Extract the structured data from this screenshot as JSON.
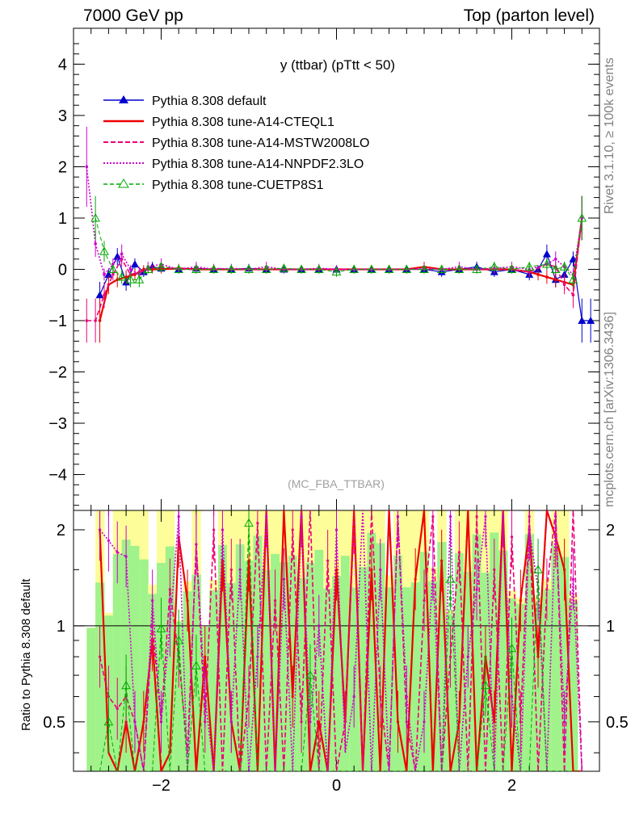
{
  "header": {
    "left": "7000 GeV pp",
    "right": "Top (parton level)"
  },
  "side": {
    "top_label": "Rivet 3.1.10, ≥ 100k events",
    "bottom_label": "mcplots.cern.ch [arXiv:1306.3436]"
  },
  "chart_data": [
    {
      "type": "line",
      "title": "y (ttbar) (pTtt < 50)",
      "watermark": "(MC_FBA_TTBAR)",
      "xlim": [
        -3.0,
        3.0
      ],
      "ylim": [
        -4.7,
        4.7
      ],
      "xticks": [
        -2,
        0,
        2
      ],
      "yticks": [
        -4,
        -3,
        -2,
        -1,
        0,
        1,
        2,
        3,
        4
      ],
      "legend_position": "top-left",
      "series": [
        {
          "name": "Pythia 8.308 default",
          "color": "#0000cc",
          "x": [
            -2.7,
            -2.6,
            -2.5,
            -2.4,
            -2.3,
            -2.2,
            -2.1,
            -2.0,
            -1.8,
            -1.6,
            -1.4,
            -1.2,
            -1.0,
            -0.8,
            -0.6,
            -0.4,
            -0.2,
            0.0,
            0.2,
            0.4,
            0.6,
            0.8,
            1.0,
            1.2,
            1.4,
            1.6,
            1.8,
            2.0,
            2.2,
            2.3,
            2.4,
            2.5,
            2.6,
            2.7,
            2.8,
            2.9
          ],
          "y": [
            -0.5,
            -0.1,
            0.25,
            -0.25,
            0.1,
            -0.05,
            0.05,
            0.02,
            0.0,
            0.02,
            0.0,
            0.0,
            0.02,
            0.0,
            0.0,
            0.0,
            0.0,
            0.0,
            0.0,
            0.0,
            0.0,
            0.0,
            0.0,
            -0.05,
            0.0,
            0.05,
            -0.05,
            0.0,
            -0.1,
            0.0,
            0.3,
            -0.2,
            -0.1,
            0.2,
            -1.0,
            -1.0
          ]
        },
        {
          "name": "Pythia 8.308 tune-A14-CTEQL1",
          "color": "#ee0000",
          "x": [
            -2.7,
            -2.6,
            -2.5,
            -2.4,
            -2.3,
            -2.2,
            -2.1,
            -2.0,
            -1.8,
            -1.6,
            -1.4,
            -1.2,
            -1.0,
            -0.8,
            -0.6,
            -0.4,
            -0.2,
            0.0,
            0.2,
            0.4,
            0.6,
            0.8,
            1.0,
            1.2,
            1.4,
            1.6,
            1.8,
            2.0,
            2.2,
            2.3,
            2.4,
            2.5,
            2.6,
            2.7,
            2.8
          ],
          "y": [
            -1.0,
            -0.3,
            -0.2,
            -0.15,
            -0.1,
            0.0,
            0.0,
            0.0,
            0.02,
            0.0,
            0.0,
            0.0,
            0.0,
            0.0,
            0.0,
            0.0,
            0.0,
            0.0,
            0.0,
            0.0,
            0.0,
            0.0,
            0.05,
            0.0,
            0.0,
            0.0,
            0.0,
            0.0,
            -0.05,
            -0.1,
            -0.15,
            -0.2,
            -0.25,
            -0.3,
            1.0
          ]
        },
        {
          "name": "Pythia 8.308 tune-A14-MSTW2008LO",
          "color": "#ee0077",
          "x": [
            -2.85,
            -2.75,
            -2.65,
            -2.55,
            -2.45,
            -2.35,
            -2.25,
            -2.15,
            -2.0,
            -1.8,
            -1.6,
            -1.4,
            -1.2,
            -1.0,
            -0.8,
            -0.6,
            -0.4,
            -0.2,
            0.0,
            0.2,
            0.4,
            0.6,
            0.8,
            1.0,
            1.2,
            1.4,
            1.6,
            1.8,
            2.0,
            2.2,
            2.4,
            2.5,
            2.6,
            2.7,
            2.8
          ],
          "y": [
            -1.0,
            -1.0,
            -0.5,
            -0.1,
            0.2,
            -0.1,
            -0.05,
            0.0,
            0.05,
            0.0,
            0.0,
            0.02,
            0.0,
            0.0,
            0.0,
            0.0,
            0.0,
            0.0,
            0.0,
            0.0,
            0.0,
            0.0,
            0.0,
            0.0,
            0.0,
            0.0,
            0.0,
            0.0,
            0.0,
            -0.05,
            0.1,
            0.05,
            -0.3,
            -0.5,
            1.0
          ]
        },
        {
          "name": "Pythia 8.308 tune-A14-NNPDF2.3LO",
          "color": "#cc00cc",
          "x": [
            -2.85,
            -2.75,
            -2.65,
            -2.55,
            -2.45,
            -2.35,
            -2.25,
            -2.15,
            -2.0,
            -1.8,
            -1.6,
            -1.4,
            -1.2,
            -1.0,
            -0.8,
            -0.6,
            -0.4,
            -0.2,
            0.0,
            0.2,
            0.4,
            0.6,
            0.8,
            1.0,
            1.2,
            1.4,
            1.6,
            1.8,
            2.0,
            2.2,
            2.4,
            2.5,
            2.6,
            2.7,
            2.8
          ],
          "y": [
            2.0,
            0.5,
            -0.1,
            0.1,
            0.3,
            0.0,
            -0.1,
            0.05,
            0.1,
            0.0,
            0.05,
            0.0,
            0.02,
            0.0,
            0.05,
            0.0,
            0.0,
            0.02,
            0.0,
            0.0,
            0.0,
            0.0,
            0.0,
            0.02,
            0.0,
            0.05,
            0.0,
            0.02,
            0.05,
            0.0,
            0.1,
            0.2,
            0.05,
            -0.1,
            1.0
          ]
        },
        {
          "name": "Pythia 8.308 tune-CUETP8S1",
          "color": "#00aa00",
          "x": [
            -2.75,
            -2.65,
            -2.55,
            -2.45,
            -2.35,
            -2.25,
            -2.15,
            -2.0,
            -1.8,
            -1.6,
            -1.4,
            -1.2,
            -1.0,
            -0.8,
            -0.6,
            -0.4,
            -0.2,
            0.0,
            0.2,
            0.4,
            0.6,
            0.8,
            1.0,
            1.2,
            1.4,
            1.6,
            1.8,
            2.0,
            2.2,
            2.4,
            2.5,
            2.6,
            2.7,
            2.8
          ],
          "y": [
            1.0,
            0.35,
            0.0,
            -0.15,
            -0.2,
            -0.2,
            0.0,
            0.05,
            0.0,
            0.0,
            0.0,
            0.0,
            0.0,
            0.0,
            0.02,
            0.0,
            0.0,
            -0.05,
            0.0,
            0.0,
            0.0,
            0.0,
            0.0,
            0.0,
            0.0,
            0.0,
            0.05,
            0.0,
            0.05,
            0.1,
            0.0,
            0.05,
            -0.2,
            1.0
          ]
        }
      ]
    },
    {
      "type": "line",
      "ylabel": "Ratio to Pythia 8.308 default",
      "xlim": [
        -3.0,
        3.0
      ],
      "ylim": [
        0.35,
        2.3
      ],
      "xticks": [
        -2,
        0,
        2
      ],
      "yticks": [
        0.5,
        1,
        2
      ],
      "ytick_labels": [
        "0.5",
        "1",
        "2"
      ],
      "reference_line": 1,
      "band_colors": {
        "inner": "#a0f28a",
        "outer": "#fdfd9a"
      },
      "series": [
        {
          "name": "Pythia 8.308 tune-A14-CTEQL1",
          "color": "#ee0000",
          "x": [
            -2.7,
            -2.6,
            -2.5,
            -2.4,
            -2.3,
            -2.2,
            -2.1,
            -2.0,
            -1.9,
            -1.8,
            -1.7,
            -1.6,
            -1.5,
            -1.4,
            -1.3,
            -1.2,
            -1.1,
            -1.0,
            -0.9,
            -0.8,
            -0.7,
            -0.6,
            -0.5,
            -0.4,
            -0.3,
            -0.2,
            -0.1,
            0.0,
            0.1,
            0.2,
            0.3,
            0.4,
            0.5,
            0.6,
            0.7,
            0.8,
            0.9,
            1.0,
            1.1,
            1.2,
            1.3,
            1.4,
            1.5,
            1.6,
            1.7,
            1.8,
            1.9,
            2.0,
            2.1,
            2.2,
            2.3,
            2.4,
            2.5,
            2.6,
            2.7,
            2.8
          ],
          "y": [
            2.0,
            0.4,
            0.35,
            0.5,
            0.35,
            0.5,
            0.9,
            0.35,
            0.4,
            1.9,
            1.2,
            0.35,
            0.8,
            0.35,
            1.6,
            0.5,
            0.35,
            1.6,
            0.35,
            2.3,
            0.35,
            2.3,
            0.6,
            2.3,
            0.35,
            0.5,
            0.35,
            1.5,
            0.5,
            2.3,
            0.35,
            1.5,
            0.35,
            2.3,
            0.5,
            0.35,
            1.4,
            2.3,
            0.35,
            1.6,
            0.35,
            0.5,
            2.3,
            0.35,
            0.8,
            0.5,
            2.3,
            0.35,
            1.2,
            2.0,
            0.8,
            2.3,
            1.9,
            1.5,
            0.35,
            0.35
          ]
        },
        {
          "name": "Pythia 8.308 tune-A14-MSTW2008LO",
          "color": "#ee0077",
          "x": [
            -2.7,
            -2.6,
            -2.5,
            -2.4,
            -2.3,
            -2.2,
            -2.1,
            -2.0,
            -1.9,
            -1.8,
            -1.7,
            -1.6,
            -1.5,
            -1.4,
            -1.3,
            -1.2,
            -1.1,
            -1.0,
            -0.9,
            -0.8,
            -0.7,
            -0.6,
            -0.5,
            -0.4,
            -0.3,
            -0.2,
            -0.1,
            0.0,
            0.1,
            0.2,
            0.3,
            0.4,
            0.5,
            0.6,
            0.7,
            0.8,
            0.9,
            1.0,
            1.1,
            1.2,
            1.3,
            1.4,
            1.5,
            1.6,
            1.7,
            1.8,
            1.9,
            2.0,
            2.1,
            2.2,
            2.3,
            2.4,
            2.5,
            2.6,
            2.7,
            2.8
          ],
          "y": [
            0.8,
            0.6,
            0.55,
            0.6,
            0.5,
            0.35,
            1.0,
            0.5,
            1.3,
            0.8,
            0.4,
            1.8,
            0.5,
            2.0,
            0.35,
            1.5,
            0.35,
            0.6,
            2.1,
            0.35,
            1.2,
            0.35,
            2.0,
            0.5,
            2.3,
            0.35,
            1.6,
            0.35,
            0.5,
            2.1,
            0.35,
            2.3,
            0.6,
            0.35,
            2.2,
            0.5,
            0.35,
            1.2,
            2.2,
            0.35,
            0.8,
            1.7,
            0.35,
            2.2,
            0.35,
            1.5,
            0.35,
            1.9,
            0.5,
            2.2,
            0.35,
            1.3,
            2.3,
            0.35,
            2.3,
            0.35
          ]
        },
        {
          "name": "Pythia 8.308 tune-A14-NNPDF2.3LO",
          "color": "#cc00cc",
          "x": [
            -2.7,
            -2.6,
            -2.5,
            -2.4,
            -2.3,
            -2.2,
            -2.1,
            -2.0,
            -1.9,
            -1.8,
            -1.7,
            -1.6,
            -1.5,
            -1.4,
            -1.3,
            -1.2,
            -1.1,
            -1.0,
            -0.9,
            -0.8,
            -0.7,
            -0.6,
            -0.5,
            -0.4,
            -0.3,
            -0.2,
            -0.1,
            0.0,
            0.1,
            0.2,
            0.3,
            0.4,
            0.5,
            0.6,
            0.7,
            0.8,
            0.9,
            1.0,
            1.1,
            1.2,
            1.3,
            1.4,
            1.5,
            1.6,
            1.7,
            1.8,
            1.9,
            2.0,
            2.1,
            2.2,
            2.3,
            2.4,
            2.5,
            2.6,
            2.7,
            2.8
          ],
          "y": [
            2.0,
            1.85,
            1.7,
            1.65,
            0.5,
            0.35,
            1.2,
            0.5,
            1.0,
            2.2,
            0.35,
            1.8,
            0.6,
            0.35,
            2.0,
            0.5,
            1.5,
            0.35,
            0.8,
            2.2,
            0.35,
            1.4,
            0.35,
            2.2,
            0.5,
            1.0,
            0.35,
            2.0,
            0.4,
            0.6,
            2.3,
            0.35,
            1.5,
            0.35,
            2.2,
            0.6,
            0.35,
            0.5,
            1.5,
            0.35,
            2.2,
            0.35,
            0.8,
            1.3,
            2.2,
            0.35,
            2.2,
            0.6,
            0.35,
            2.0,
            1.3,
            0.35,
            2.2,
            0.5,
            1.4,
            0.35
          ]
        },
        {
          "name": "Pythia 8.308 tune-CUETP8S1",
          "color": "#00aa00",
          "x": [
            -2.7,
            -2.6,
            -2.5,
            -2.4,
            -2.3,
            -2.2,
            -2.1,
            -2.0,
            -1.9,
            -1.8,
            -1.7,
            -1.6,
            -1.5,
            -1.4,
            -1.3,
            -1.2,
            -1.1,
            -1.0,
            -0.9,
            -0.8,
            -0.7,
            -0.6,
            -0.5,
            -0.4,
            -0.3,
            -0.2,
            -0.1,
            0.0,
            0.1,
            0.2,
            0.3,
            0.4,
            0.5,
            0.6,
            0.7,
            0.8,
            0.9,
            1.0,
            1.1,
            1.2,
            1.3,
            1.4,
            1.5,
            1.6,
            1.7,
            1.8,
            1.9,
            2.0,
            2.1,
            2.2,
            2.3,
            2.4,
            2.5,
            2.6,
            2.7,
            2.8
          ],
          "y": [
            0.35,
            0.5,
            0.35,
            0.65,
            0.35,
            0.35,
            0.35,
            0.98,
            0.35,
            0.9,
            0.35,
            0.75,
            0.35,
            0.35,
            0.35,
            0.35,
            0.35,
            2.1,
            0.35,
            0.35,
            0.35,
            0.35,
            0.35,
            0.35,
            0.7,
            0.35,
            0.35,
            0.35,
            0.35,
            0.35,
            0.35,
            0.35,
            0.35,
            0.35,
            0.35,
            0.35,
            0.35,
            0.35,
            0.35,
            0.35,
            1.4,
            0.35,
            0.35,
            0.35,
            0.65,
            0.35,
            0.35,
            0.85,
            0.35,
            0.35,
            1.5,
            0.35,
            0.35,
            0.35,
            0.35,
            0.35
          ]
        }
      ]
    }
  ]
}
